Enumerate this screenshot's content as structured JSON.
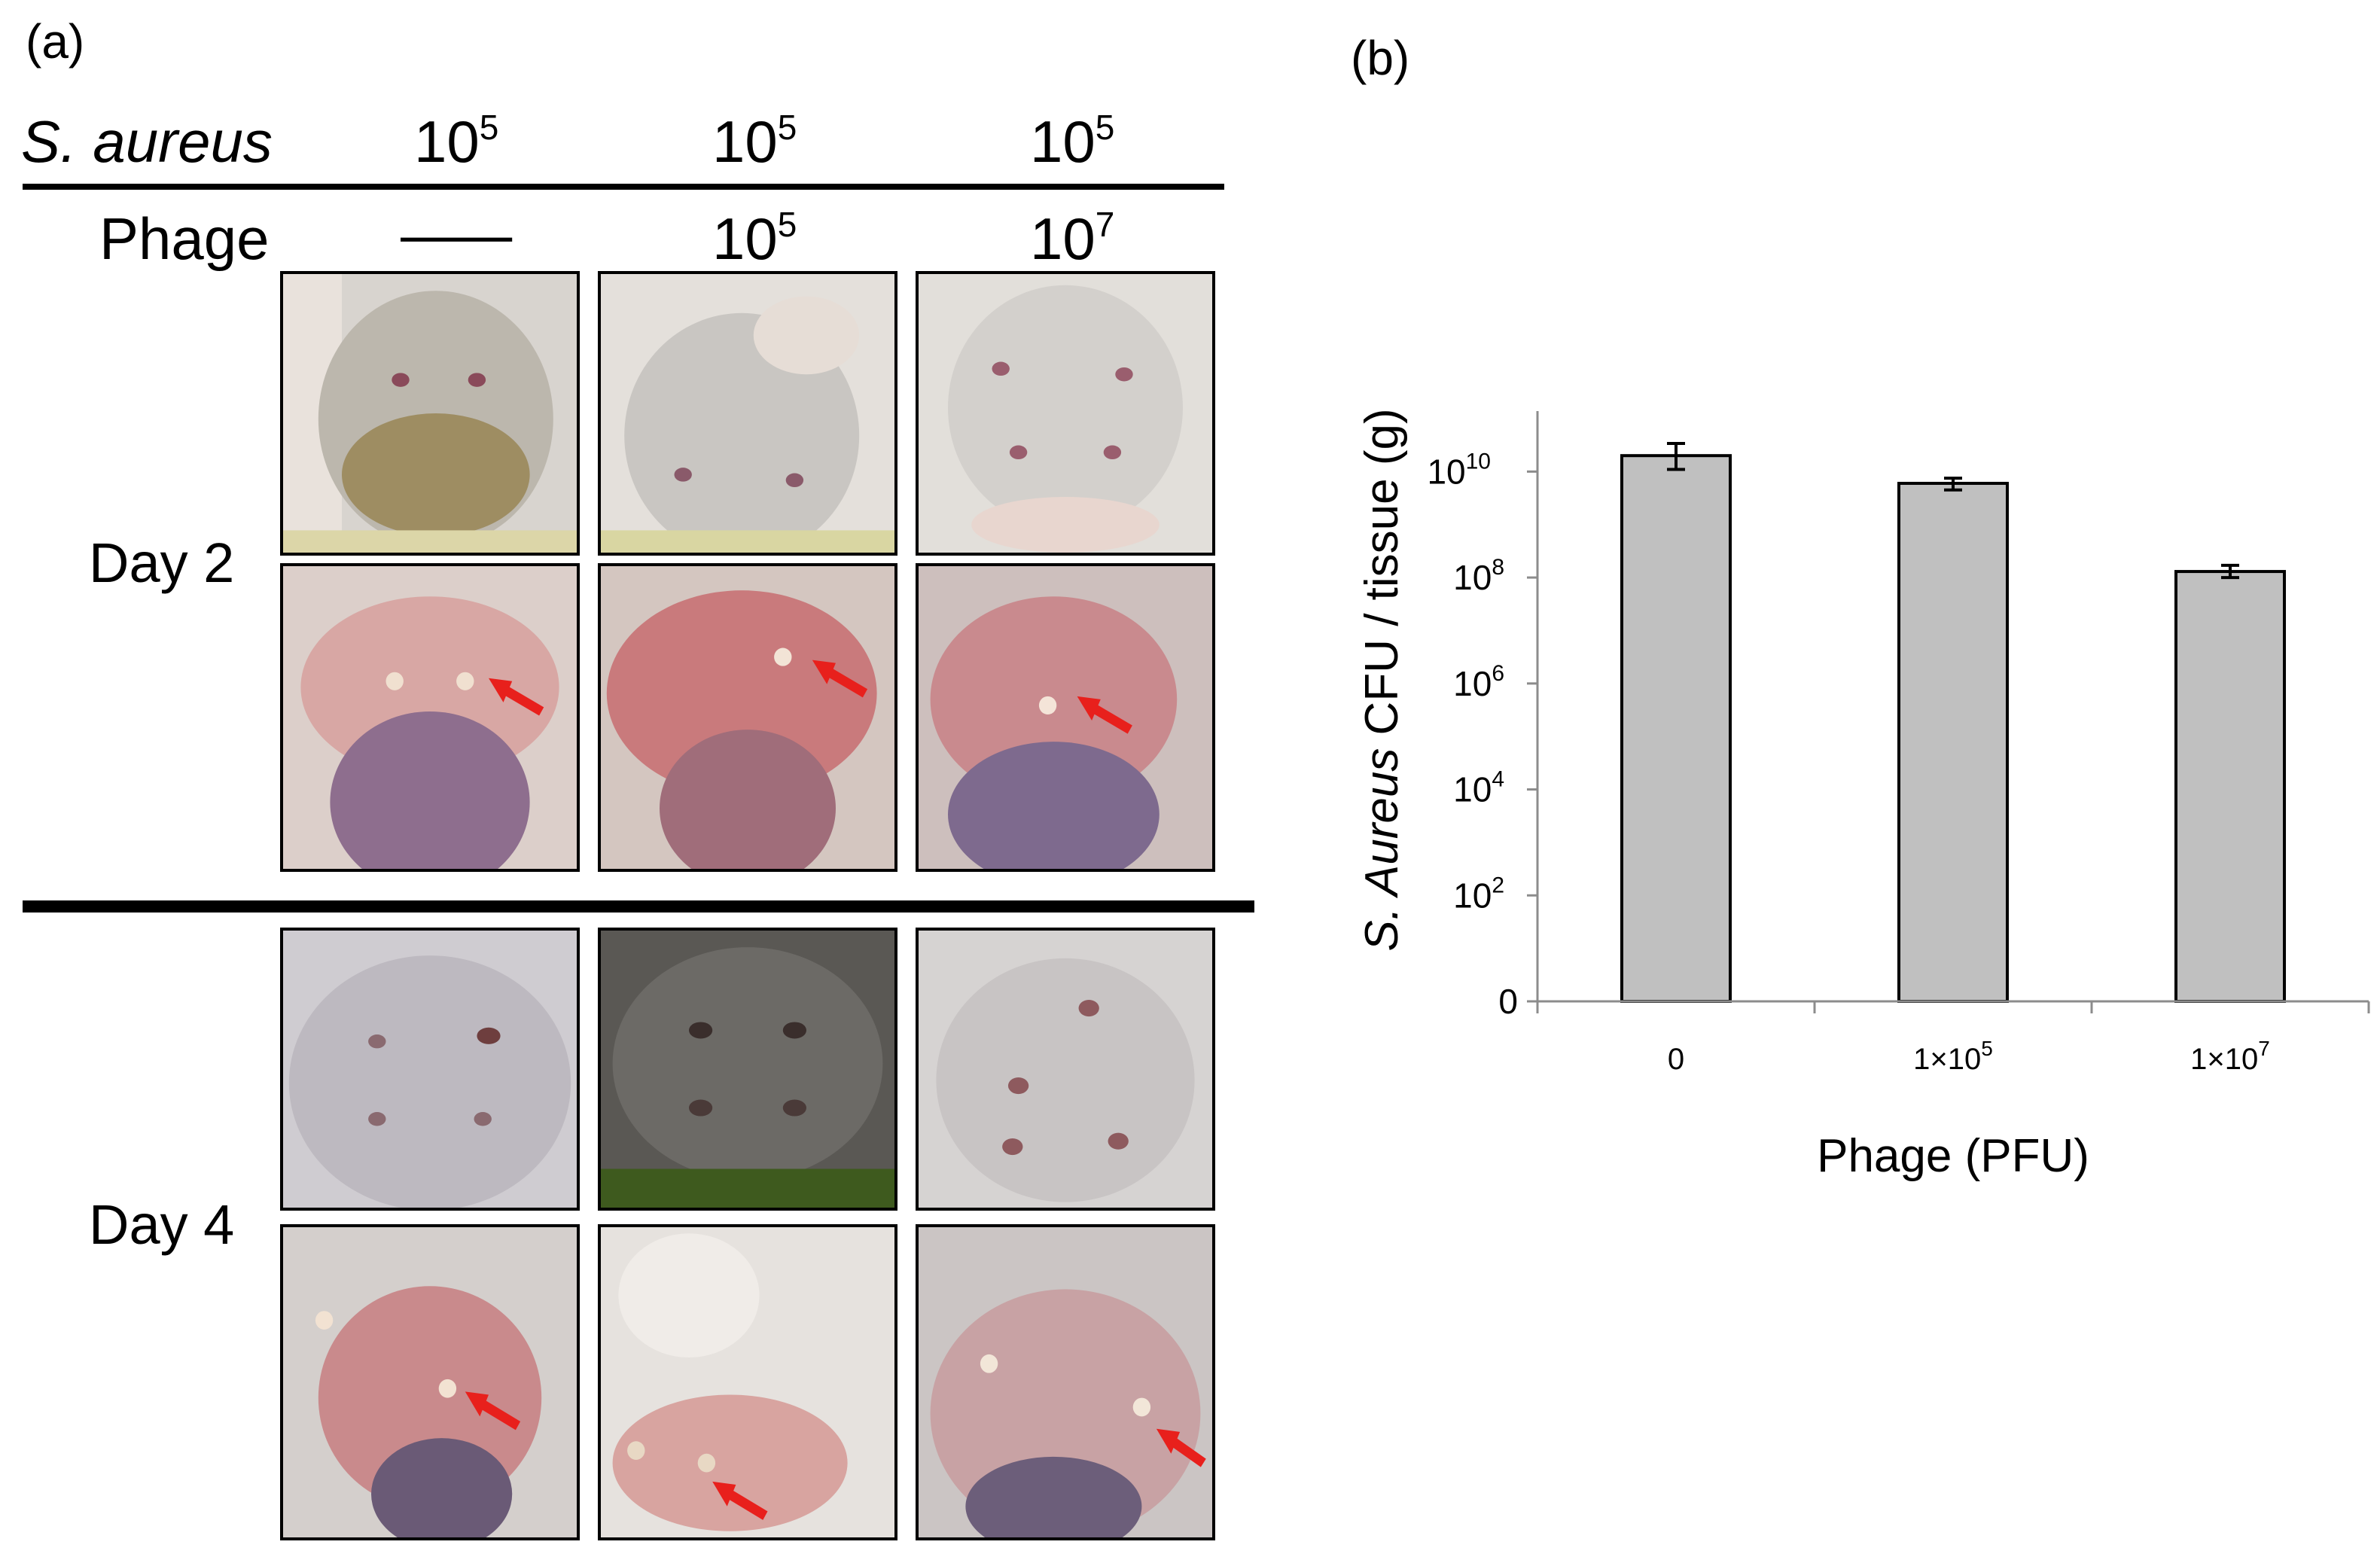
{
  "panel_a": {
    "label": "(a)",
    "header": {
      "row1_label": "S. aureus",
      "row1_values": [
        {
          "base": "10",
          "exp": "5"
        },
        {
          "base": "10",
          "exp": "5"
        },
        {
          "base": "10",
          "exp": "5"
        }
      ],
      "row2_label": "Phage",
      "row2_values": [
        {
          "base": "—",
          "exp": ""
        },
        {
          "base": "10",
          "exp": "5"
        },
        {
          "base": "10",
          "exp": "7"
        }
      ]
    },
    "days": [
      "Day 2",
      "Day 4"
    ],
    "photos": {
      "day2_top": [
        "mouse-back-haired",
        "mouse-back-shaved",
        "mouse-back-shaved"
      ],
      "day2_bottom": [
        "opened-skin-arrow",
        "opened-skin-arrow",
        "opened-skin-arrow"
      ],
      "day4_top": [
        "mouse-back-closeup",
        "mouse-back-dark",
        "mouse-back-closeup"
      ],
      "day4_bottom": [
        "opened-skin-arrow",
        "opened-skin-arrow",
        "opened-skin-arrow"
      ]
    },
    "arrow_color": "#e8201c"
  },
  "panel_b": {
    "label": "(b)",
    "chart_data": {
      "type": "bar",
      "title": "",
      "xlabel": "Phage (PFU)",
      "ylabel_italic": "S. Aureus",
      "ylabel_rest": " CFU / tissue (g)",
      "yscale": "log",
      "categories": [
        "0",
        "1×10^5",
        "1×10^7"
      ],
      "category_labels": [
        {
          "base": "0",
          "exp": ""
        },
        {
          "base": "1×10",
          "exp": "5"
        },
        {
          "base": "1×10",
          "exp": "7"
        }
      ],
      "values": [
        20000000000,
        6000000000,
        130000000
      ],
      "errors_low": [
        9000000000,
        1500000000,
        30000000
      ],
      "errors_high": [
        14000000000,
        1500000000,
        40000000
      ],
      "yticks": [
        {
          "value": 1,
          "base": "0",
          "exp": ""
        },
        {
          "value": 100,
          "base": "10",
          "exp": "2"
        },
        {
          "value": 10000,
          "base": "10",
          "exp": "4"
        },
        {
          "value": 1000000,
          "base": "10",
          "exp": "6"
        },
        {
          "value": 100000000,
          "base": "10",
          "exp": "8"
        },
        {
          "value": 10000000000,
          "base": "10",
          "exp": "10"
        }
      ],
      "ylim": [
        1,
        100000000000
      ],
      "bar_color": "#c0c0c0",
      "grid": false,
      "legend": "none"
    }
  }
}
